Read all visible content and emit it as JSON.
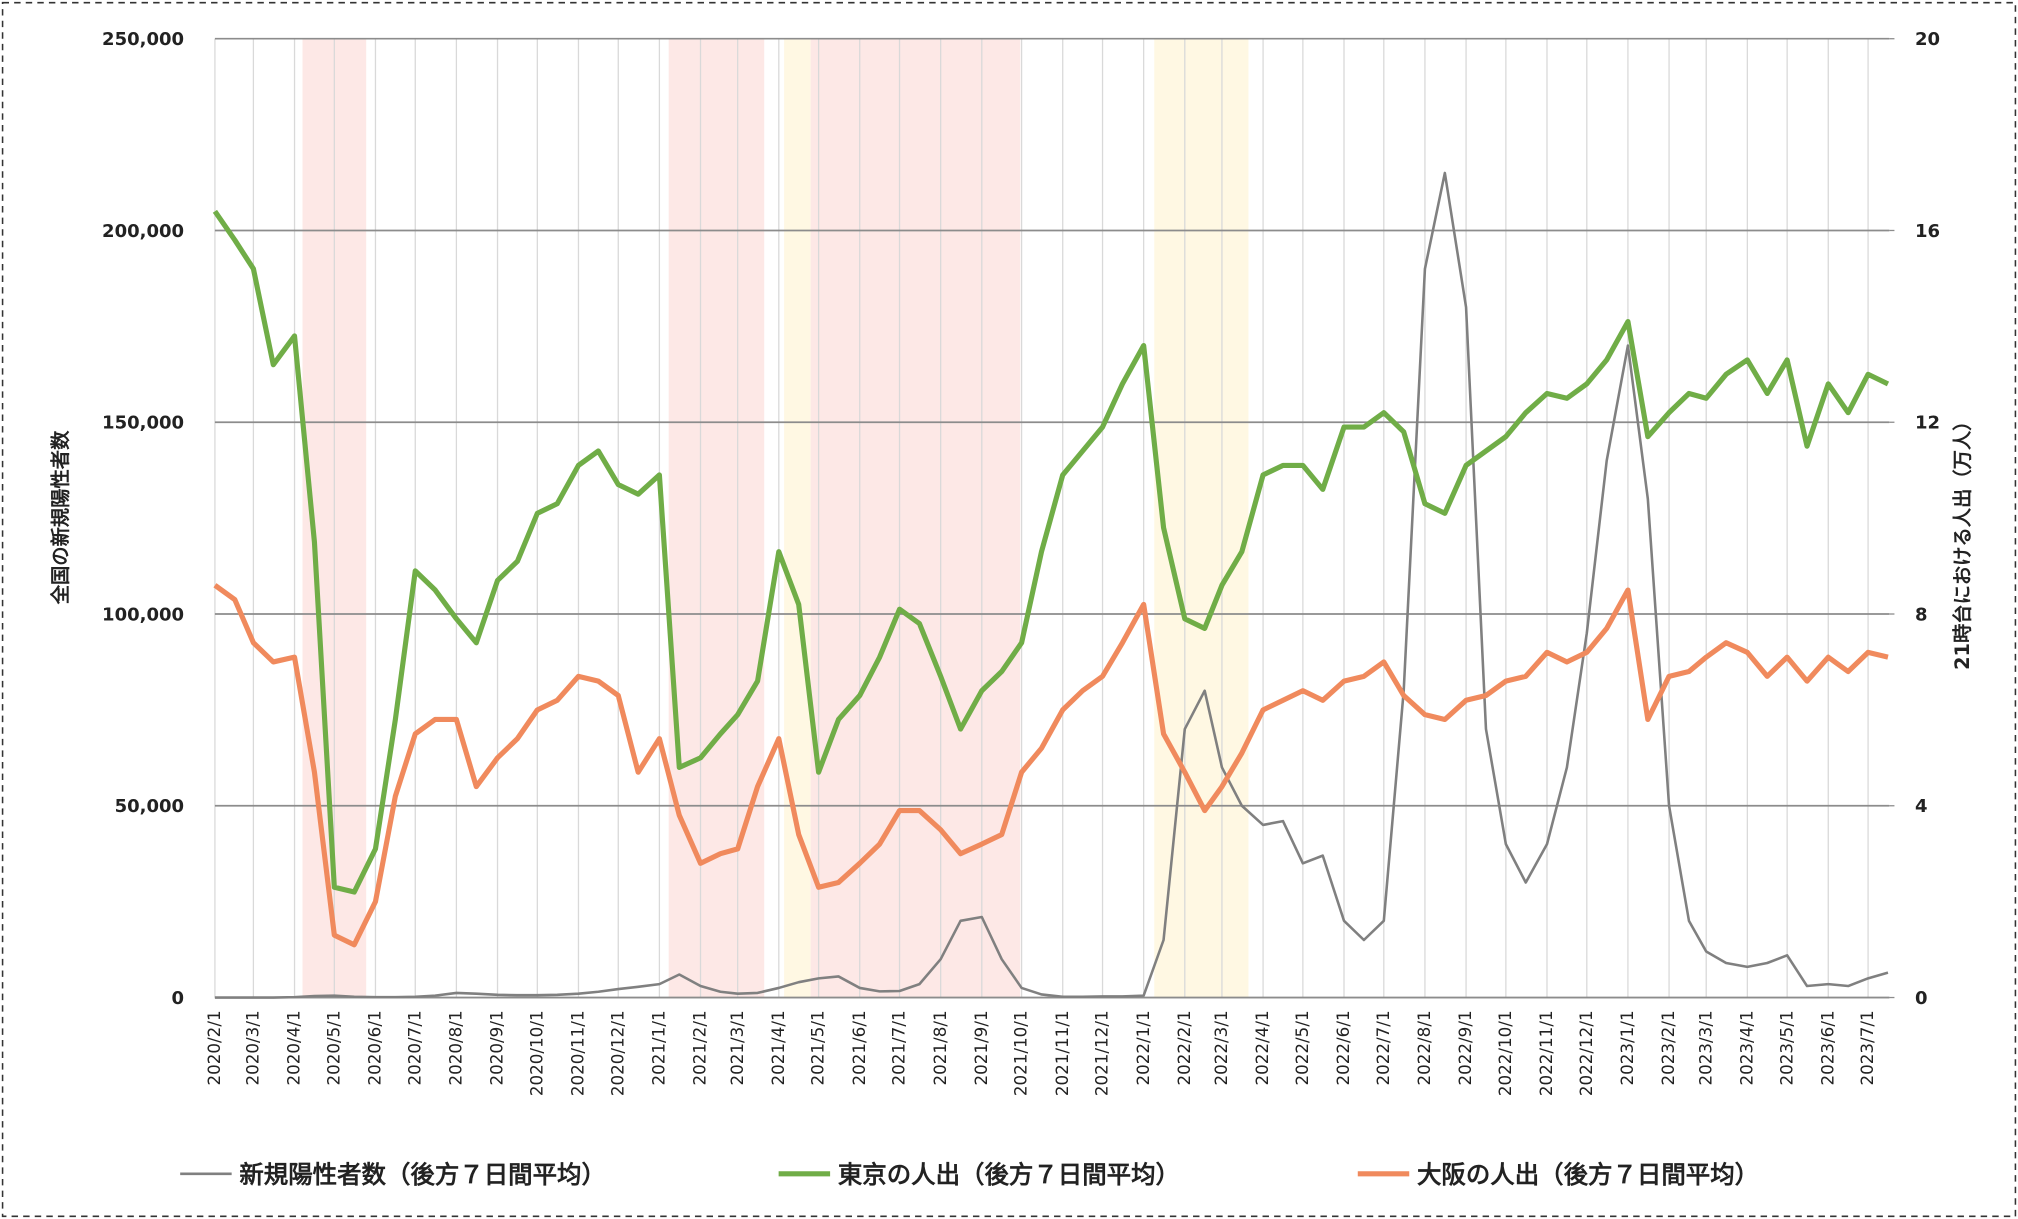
{
  "chart_data": {
    "type": "line",
    "y_label": "全国の新規陽性者数",
    "y2_label": "21時台における人出（万人）",
    "xlim": [
      "2020/2/1",
      "2023/7/17"
    ],
    "xticks": [
      "2020/2/1",
      "2020/3/1",
      "2020/4/1",
      "2020/5/1",
      "2020/6/1",
      "2020/7/1",
      "2020/8/1",
      "2020/9/1",
      "2020/10/1",
      "2020/11/1",
      "2020/12/1",
      "2021/1/1",
      "2021/2/1",
      "2021/3/1",
      "2021/4/1",
      "2021/5/1",
      "2021/6/1",
      "2021/7/1",
      "2021/8/1",
      "2021/9/1",
      "2021/10/1",
      "2021/11/1",
      "2021/12/1",
      "2022/1/1",
      "2022/2/1",
      "2022/3/1",
      "2022/4/1",
      "2022/5/1",
      "2022/6/1",
      "2022/7/1",
      "2022/8/1",
      "2022/9/1",
      "2022/10/1",
      "2022/11/1",
      "2022/12/1",
      "2023/1/1",
      "2023/2/1",
      "2023/3/1",
      "2023/4/1",
      "2023/5/1",
      "2023/6/1",
      "2023/7/1"
    ],
    "ylim": [
      0,
      250000
    ],
    "yticks": [
      0,
      {
        "value": 50000,
        "label": "50,000"
      },
      {
        "value": 100000,
        "label": "100,000"
      },
      {
        "value": 150000,
        "label": "150,000"
      },
      {
        "value": 200000,
        "label": "200,000"
      },
      {
        "value": 250000,
        "label": "250,000"
      }
    ],
    "y2lim": [
      0,
      20
    ],
    "y2ticks": [
      0,
      4,
      8,
      12,
      16,
      20
    ],
    "grid": true,
    "legend": "bottom",
    "shaded_periods": [
      {
        "start": "2020/4/7",
        "end": "2020/5/25",
        "color": "#fde8e6"
      },
      {
        "start": "2021/1/8",
        "end": "2021/3/21",
        "color": "#fde8e6"
      },
      {
        "start": "2021/4/5",
        "end": "2021/4/25",
        "color": "#fff8e3"
      },
      {
        "start": "2021/4/25",
        "end": "2021/9/30",
        "color": "#fde8e6"
      },
      {
        "start": "2022/1/9",
        "end": "2022/3/21",
        "color": "#fff8e3"
      }
    ],
    "x": [
      "2020/2/1",
      "2020/2/16",
      "2020/3/1",
      "2020/3/16",
      "2020/4/1",
      "2020/4/16",
      "2020/5/1",
      "2020/5/16",
      "2020/6/1",
      "2020/6/16",
      "2020/7/1",
      "2020/7/16",
      "2020/8/1",
      "2020/8/16",
      "2020/9/1",
      "2020/9/16",
      "2020/10/1",
      "2020/10/16",
      "2020/11/1",
      "2020/11/16",
      "2020/12/1",
      "2020/12/16",
      "2021/1/1",
      "2021/1/16",
      "2021/2/1",
      "2021/2/16",
      "2021/3/1",
      "2021/3/16",
      "2021/4/1",
      "2021/4/16",
      "2021/5/1",
      "2021/5/16",
      "2021/6/1",
      "2021/6/16",
      "2021/7/1",
      "2021/7/16",
      "2021/8/1",
      "2021/8/16",
      "2021/9/1",
      "2021/9/16",
      "2021/10/1",
      "2021/10/16",
      "2021/11/1",
      "2021/11/16",
      "2021/12/1",
      "2021/12/16",
      "2022/1/1",
      "2022/1/16",
      "2022/2/1",
      "2022/2/16",
      "2022/3/1",
      "2022/3/16",
      "2022/4/1",
      "2022/4/16",
      "2022/5/1",
      "2022/5/16",
      "2022/6/1",
      "2022/6/16",
      "2022/7/1",
      "2022/7/16",
      "2022/8/1",
      "2022/8/16",
      "2022/9/1",
      "2022/9/16",
      "2022/10/1",
      "2022/10/16",
      "2022/11/1",
      "2022/11/16",
      "2022/12/1",
      "2022/12/16",
      "2023/1/1",
      "2023/1/16",
      "2023/2/1",
      "2023/2/16",
      "2023/3/1",
      "2023/3/16",
      "2023/4/1",
      "2023/4/16",
      "2023/5/1",
      "2023/5/16",
      "2023/6/1",
      "2023/6/16",
      "2023/7/1",
      "2023/7/16"
    ],
    "series": [
      {
        "name": "新規陽性者数（後方７日間平均）",
        "color": "#808080",
        "width": 2,
        "values": [
          0,
          0,
          0,
          0,
          100,
          400,
          500,
          200,
          100,
          100,
          200,
          500,
          1200,
          1000,
          700,
          600,
          600,
          700,
          1000,
          1500,
          2200,
          2800,
          3500,
          6000,
          3000,
          1500,
          1000,
          1200,
          2500,
          4000,
          5000,
          5500,
          2500,
          1600,
          1700,
          3500,
          10000,
          20000,
          21000,
          10000,
          2500,
          800,
          200,
          200,
          300,
          300,
          500,
          15000,
          70000,
          80000,
          60000,
          50000,
          45000,
          46000,
          35000,
          37000,
          20000,
          15000,
          20000,
          80000,
          190000,
          215000,
          180000,
          70000,
          40000,
          30000,
          40000,
          60000,
          95000,
          140000,
          170000,
          130000,
          50000,
          20000,
          12000,
          9000,
          8000,
          9000,
          11000,
          3000,
          3500,
          3000,
          5000,
          6500
        ]
      },
      {
        "name": "東京の人出（後方７日間平均）",
        "color": "#70ad47",
        "width": 4,
        "axis": "y2",
        "values": [
          16.4,
          15.8,
          15.2,
          13.2,
          13.8,
          9.5,
          2.3,
          2.2,
          3.1,
          5.8,
          8.9,
          8.5,
          7.9,
          7.4,
          8.7,
          9.1,
          10.1,
          10.3,
          11.1,
          11.4,
          10.7,
          10.5,
          10.9,
          4.8,
          5.0,
          5.5,
          5.9,
          6.6,
          9.3,
          8.2,
          4.7,
          5.8,
          6.3,
          7.1,
          8.1,
          7.8,
          6.7,
          5.6,
          6.4,
          6.8,
          7.4,
          9.3,
          10.9,
          11.4,
          11.9,
          12.8,
          13.6,
          9.8,
          7.9,
          7.7,
          8.6,
          9.3,
          10.9,
          11.1,
          11.1,
          10.6,
          11.9,
          11.9,
          12.2,
          11.8,
          10.3,
          10.1,
          11.1,
          11.4,
          11.7,
          12.2,
          12.6,
          12.5,
          12.8,
          13.3,
          14.1,
          11.7,
          12.2,
          12.6,
          12.5,
          13.0,
          13.3,
          12.6,
          13.3,
          11.5,
          12.8,
          12.2,
          13.0,
          12.8
        ]
      },
      {
        "name": "大阪の人出（後方７日間平均）",
        "color": "#f08a5d",
        "width": 4,
        "axis": "y2",
        "values": [
          8.6,
          8.3,
          7.4,
          7.0,
          7.1,
          4.7,
          1.3,
          1.1,
          2.0,
          4.2,
          5.5,
          5.8,
          5.8,
          4.4,
          5.0,
          5.4,
          6.0,
          6.2,
          6.7,
          6.6,
          6.3,
          4.7,
          5.4,
          3.8,
          2.8,
          3.0,
          3.1,
          4.4,
          5.4,
          3.4,
          2.3,
          2.4,
          2.8,
          3.2,
          3.9,
          3.9,
          3.5,
          3.0,
          3.2,
          3.4,
          4.7,
          5.2,
          6.0,
          6.4,
          6.7,
          7.4,
          8.2,
          5.5,
          4.7,
          3.9,
          4.4,
          5.1,
          6.0,
          6.2,
          6.4,
          6.2,
          6.6,
          6.7,
          7.0,
          6.3,
          5.9,
          5.8,
          6.2,
          6.3,
          6.6,
          6.7,
          7.2,
          7.0,
          7.2,
          7.7,
          8.5,
          5.8,
          6.7,
          6.8,
          7.1,
          7.4,
          7.2,
          6.7,
          7.1,
          6.6,
          7.1,
          6.8,
          7.2,
          7.1
        ]
      }
    ]
  }
}
